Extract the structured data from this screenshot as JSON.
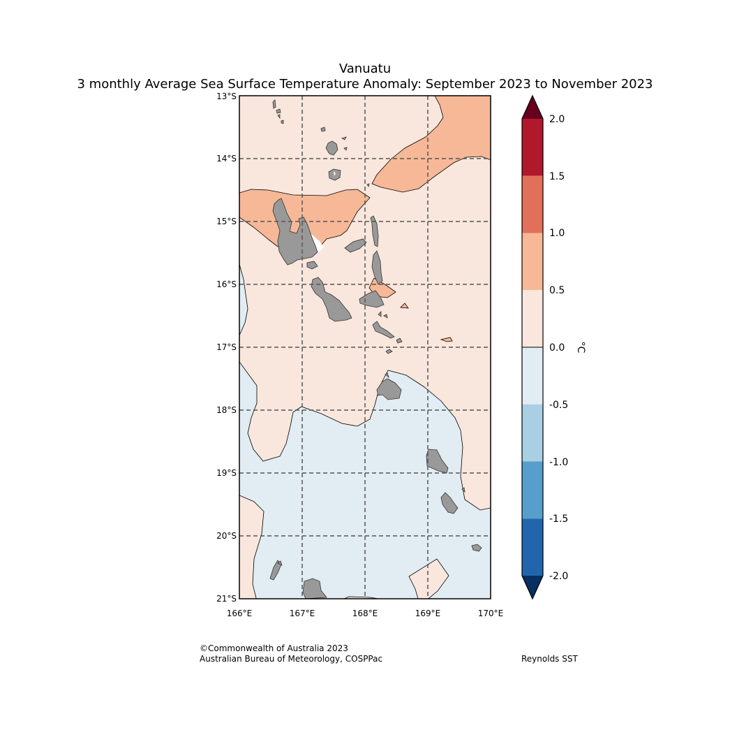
{
  "title": {
    "line1": "Vanuatu",
    "line2": "3 monthly Average Sea Surface Temperature Anomaly: September 2023 to November 2023"
  },
  "map": {
    "lon_range": [
      166,
      170
    ],
    "lat_range": [
      -21,
      -13
    ],
    "x_ticks": [
      "166°E",
      "167°E",
      "168°E",
      "169°E",
      "170°E"
    ],
    "y_ticks": [
      "13°S",
      "14°S",
      "15°S",
      "16°S",
      "17°S",
      "18°S",
      "19°S",
      "20°S",
      "21°S"
    ],
    "gridlines": true,
    "land_color": "#999999",
    "ocean_background_color": "#f9e6dc"
  },
  "colorbar": {
    "unit": "°C",
    "ticks": [
      "2.0",
      "1.5",
      "1.0",
      "0.5",
      "0.0",
      "-0.5",
      "-1.0",
      "-1.5",
      "-2.0"
    ],
    "levels": [
      {
        "min": 2.0,
        "max": null,
        "color": "#67001f"
      },
      {
        "min": 1.5,
        "max": 2.0,
        "color": "#b2182b"
      },
      {
        "min": 1.0,
        "max": 1.5,
        "color": "#e0705a"
      },
      {
        "min": 0.5,
        "max": 1.0,
        "color": "#f6b897"
      },
      {
        "min": 0.0,
        "max": 0.5,
        "color": "#f9e6dc"
      },
      {
        "min": -0.5,
        "max": 0.0,
        "color": "#e1ecf3"
      },
      {
        "min": -1.0,
        "max": -0.5,
        "color": "#a8cfe4"
      },
      {
        "min": -1.5,
        "max": -1.0,
        "color": "#569fcd"
      },
      {
        "min": -2.0,
        "max": -1.5,
        "color": "#2166ac"
      },
      {
        "min": null,
        "max": -2.0,
        "color": "#053061"
      }
    ]
  },
  "footer": {
    "credit_line1": "©Commonwealth of Australia 2023",
    "credit_line2": "Australian Bureau of Meteorology, COSPPac",
    "source": "Reynolds SST"
  }
}
